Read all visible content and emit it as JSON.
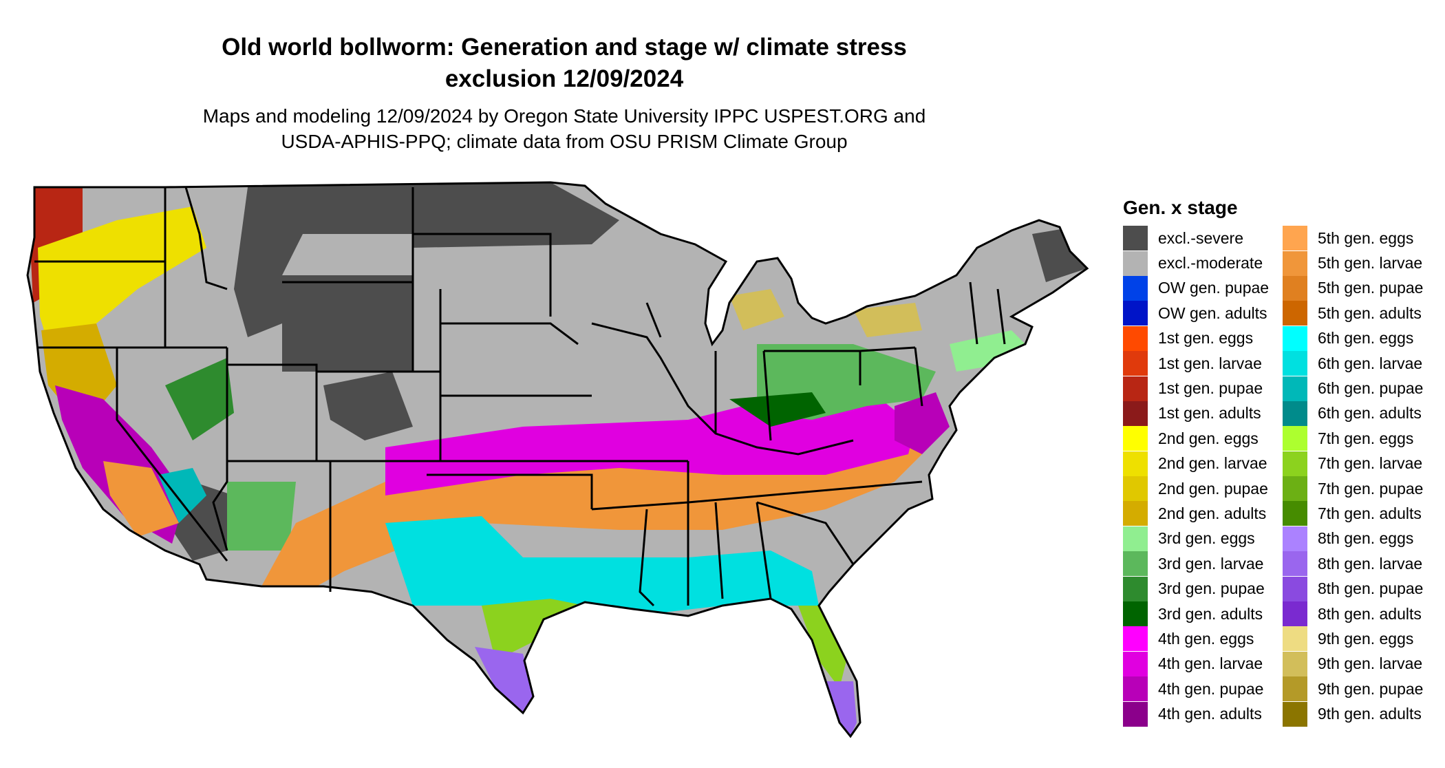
{
  "title_line1": "Old world bollworm: Generation and stage w/ climate stress",
  "title_line2": "exclusion 12/09/2024",
  "subtitle_line1": "Maps and modeling 12/09/2024 by Oregon State University IPPC USPEST.ORG and",
  "subtitle_line2": "USDA-APHIS-PPQ; climate data from OSU PRISM Climate Group",
  "legend": {
    "title": "Gen. x stage",
    "items": [
      {
        "label": "excl.-severe",
        "color": "#4d4d4d"
      },
      {
        "label": "excl.-moderate",
        "color": "#b3b3b3"
      },
      {
        "label": "OW gen. pupae",
        "color": "#0042e8"
      },
      {
        "label": "OW gen. adults",
        "color": "#0014c8"
      },
      {
        "label": "1st gen. eggs",
        "color": "#ff4a00"
      },
      {
        "label": "1st gen. larvae",
        "color": "#e03a0c"
      },
      {
        "label": "1st gen. pupae",
        "color": "#b82614"
      },
      {
        "label": "1st gen. adults",
        "color": "#8b1a1a"
      },
      {
        "label": "2nd gen. eggs",
        "color": "#ffff00"
      },
      {
        "label": "2nd gen. larvae",
        "color": "#eee000"
      },
      {
        "label": "2nd gen. pupae",
        "color": "#e0c800"
      },
      {
        "label": "2nd gen. adults",
        "color": "#d4ac00"
      },
      {
        "label": "3rd gen. eggs",
        "color": "#90ee90"
      },
      {
        "label": "3rd gen. larvae",
        "color": "#5cb85c"
      },
      {
        "label": "3rd gen. pupae",
        "color": "#2e8b2e"
      },
      {
        "label": "3rd gen. adults",
        "color": "#006400"
      },
      {
        "label": "4th gen. eggs",
        "color": "#ff00ff"
      },
      {
        "label": "4th gen. larvae",
        "color": "#e000e0"
      },
      {
        "label": "4th gen. pupae",
        "color": "#b800b8"
      },
      {
        "label": "4th gen. adults",
        "color": "#8b008b"
      },
      {
        "label": "5th gen. eggs",
        "color": "#ffa54f"
      },
      {
        "label": "5th gen. larvae",
        "color": "#f0963a"
      },
      {
        "label": "5th gen. pupae",
        "color": "#e08020"
      },
      {
        "label": "5th gen. adults",
        "color": "#cd6600"
      },
      {
        "label": "6th gen. eggs",
        "color": "#00ffff"
      },
      {
        "label": "6th gen. larvae",
        "color": "#00e0e0"
      },
      {
        "label": "6th gen. pupae",
        "color": "#00b8b8"
      },
      {
        "label": "6th gen. adults",
        "color": "#008b8b"
      },
      {
        "label": "7th gen. eggs",
        "color": "#adff2f"
      },
      {
        "label": "7th gen. larvae",
        "color": "#8cd21e"
      },
      {
        "label": "7th gen. pupae",
        "color": "#6cb014"
      },
      {
        "label": "7th gen. adults",
        "color": "#468c00"
      },
      {
        "label": "8th gen. eggs",
        "color": "#ab82ff"
      },
      {
        "label": "8th gen. larvae",
        "color": "#9a66ee"
      },
      {
        "label": "8th gen. pupae",
        "color": "#8a4ae0"
      },
      {
        "label": "8th gen. adults",
        "color": "#7a2ad0"
      },
      {
        "label": "9th gen. eggs",
        "color": "#eedc82"
      },
      {
        "label": "9th gen. larvae",
        "color": "#d2be5a"
      },
      {
        "label": "9th gen. pupae",
        "color": "#b49a28"
      },
      {
        "label": "9th gen. adults",
        "color": "#8b7500"
      }
    ]
  }
}
